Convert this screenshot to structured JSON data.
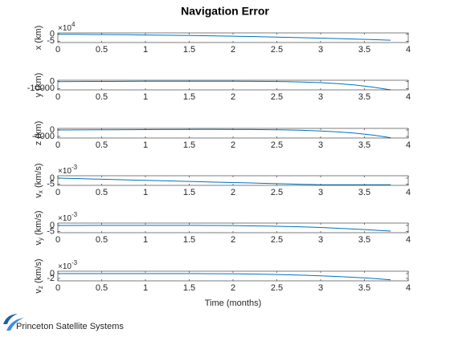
{
  "title": "Navigation Error",
  "xlabel": "Time (months)",
  "footer": "Princeton Satellite Systems",
  "chart_data": [
    {
      "type": "line",
      "ylabel": "x (km)",
      "exponent_label": {
        "base": "×10",
        "power": "4"
      },
      "xlim": [
        0,
        4
      ],
      "xticks": [
        0,
        0.5,
        1,
        1.5,
        2,
        2.5,
        3,
        3.5,
        4
      ],
      "ylim": [
        -60000,
        10000
      ],
      "yticks": [
        {
          "value": -50000,
          "label": "-5"
        },
        0
      ],
      "x": [
        0,
        0.2,
        0.4,
        0.6,
        0.8,
        1,
        1.2,
        1.4,
        1.6,
        1.8,
        2,
        2.2,
        2.4,
        2.6,
        2.8,
        3,
        3.2,
        3.4,
        3.6,
        3.8
      ],
      "series": [
        {
          "color": "#0072bd",
          "values": [
            0,
            -500,
            -1500,
            -2500,
            -3500,
            -5000,
            -6500,
            -8000,
            -10000,
            -12000,
            -14000,
            -16500,
            -19000,
            -22000,
            -25000,
            -28000,
            -31500,
            -35000,
            -39000,
            -43000
          ]
        }
      ]
    },
    {
      "type": "line",
      "ylabel": "y (km)",
      "xlim": [
        0,
        4
      ],
      "xticks": [
        0,
        0.5,
        1,
        1.5,
        2,
        2.5,
        3,
        3.5,
        4
      ],
      "ylim": [
        -12000,
        2000
      ],
      "yticks": [
        -10000,
        0
      ],
      "x": [
        0,
        0.2,
        0.4,
        0.6,
        0.8,
        1,
        1.2,
        1.4,
        1.6,
        1.8,
        2,
        2.2,
        2.4,
        2.6,
        2.8,
        3,
        3.2,
        3.4,
        3.6,
        3.8
      ],
      "series": [
        {
          "color": "#0072bd",
          "values": [
            0,
            100,
            200,
            300,
            400,
            500,
            550,
            600,
            600,
            550,
            500,
            400,
            200,
            -100,
            -600,
            -1500,
            -3000,
            -5000,
            -8000,
            -12000
          ]
        }
      ]
    },
    {
      "type": "line",
      "ylabel": "z (km)",
      "xlim": [
        0,
        4
      ],
      "xticks": [
        0,
        0.5,
        1,
        1.5,
        2,
        2.5,
        3,
        3.5,
        4
      ],
      "ylim": [
        -5000,
        1000
      ],
      "yticks": [
        -4000,
        0
      ],
      "x": [
        0,
        0.2,
        0.4,
        0.6,
        0.8,
        1,
        1.2,
        1.4,
        1.6,
        1.8,
        2,
        2.2,
        2.4,
        2.6,
        2.8,
        3,
        3.2,
        3.4,
        3.6,
        3.8
      ],
      "series": [
        {
          "color": "#0072bd",
          "values": [
            0,
            50,
            100,
            150,
            200,
            250,
            300,
            330,
            350,
            350,
            330,
            300,
            200,
            50,
            -200,
            -600,
            -1200,
            -2000,
            -3200,
            -4800
          ]
        }
      ]
    },
    {
      "type": "line",
      "ylabel": {
        "base": "v",
        "sub": "x",
        "rest": " (km/s)"
      },
      "exponent_label": {
        "base": "×10",
        "power": "-3"
      },
      "xlim": [
        0,
        4
      ],
      "xticks": [
        0,
        0.5,
        1,
        1.5,
        2,
        2.5,
        3,
        3.5,
        4
      ],
      "ylim": [
        -0.006,
        0.002
      ],
      "yticks": [
        {
          "value": -0.005,
          "label": "-5"
        },
        0
      ],
      "x": [
        0,
        0.2,
        0.4,
        0.6,
        0.8,
        1,
        1.2,
        1.4,
        1.6,
        1.8,
        2,
        2.2,
        2.4,
        2.6,
        2.8,
        3,
        3.2,
        3.4,
        3.6,
        3.8
      ],
      "series": [
        {
          "color": "#0072bd",
          "values": [
            0,
            -0.00037,
            -0.00073,
            -0.0011,
            -0.00147,
            -0.00183,
            -0.0022,
            -0.00257,
            -0.00293,
            -0.0033,
            -0.00367,
            -0.00403,
            -0.0044,
            -0.00477,
            -0.00513,
            -0.0055,
            -0.0055,
            -0.0055,
            -0.0055,
            -0.0055
          ]
        }
      ]
    },
    {
      "type": "line",
      "ylabel": {
        "base": "v",
        "sub": "y",
        "rest": " (km/s)"
      },
      "exponent_label": {
        "base": "×10",
        "power": "-3"
      },
      "xlim": [
        0,
        4
      ],
      "xticks": [
        0,
        0.5,
        1,
        1.5,
        2,
        2.5,
        3,
        3.5,
        4
      ],
      "ylim": [
        -0.006,
        0.002
      ],
      "yticks": [
        {
          "value": -0.005,
          "label": "-5"
        },
        0
      ],
      "x": [
        0,
        0.2,
        0.4,
        0.6,
        0.8,
        1,
        1.2,
        1.4,
        1.6,
        1.8,
        2,
        2.2,
        2.4,
        2.6,
        2.8,
        3,
        3.2,
        3.4,
        3.6,
        3.8
      ],
      "series": [
        {
          "color": "#0072bd",
          "values": [
            0,
            0,
            0.0001,
            0.0001,
            0.0001,
            0.0001,
            0.0001,
            0.0001,
            5e-05,
            0,
            -0.0001,
            -0.0003,
            -0.0005,
            -0.0008,
            -0.0012,
            -0.0017,
            -0.0023,
            -0.003,
            -0.0038,
            -0.0047
          ]
        }
      ]
    },
    {
      "type": "line",
      "ylabel": {
        "base": "v",
        "sub": "z",
        "rest": " (km/s)"
      },
      "exponent_label": {
        "base": "×10",
        "power": "-3"
      },
      "xlim": [
        0,
        4
      ],
      "xticks": [
        0,
        0.5,
        1,
        1.5,
        2,
        2.5,
        3,
        3.5,
        4
      ],
      "ylim": [
        -0.003,
        0.001
      ],
      "yticks": [
        {
          "value": -0.002,
          "label": "-2"
        },
        0
      ],
      "x": [
        0,
        0.2,
        0.4,
        0.6,
        0.8,
        1,
        1.2,
        1.4,
        1.6,
        1.8,
        2,
        2.2,
        2.4,
        2.6,
        2.8,
        3,
        3.2,
        3.4,
        3.6,
        3.8
      ],
      "series": [
        {
          "color": "#0072bd",
          "values": [
            0,
            0,
            0,
            0,
            0,
            0,
            0,
            0,
            -2e-05,
            -5e-05,
            -0.0001,
            -0.00018,
            -0.0003,
            -0.00045,
            -0.00065,
            -0.0009,
            -0.0012,
            -0.0016,
            -0.002,
            -0.0026
          ]
        }
      ]
    }
  ]
}
